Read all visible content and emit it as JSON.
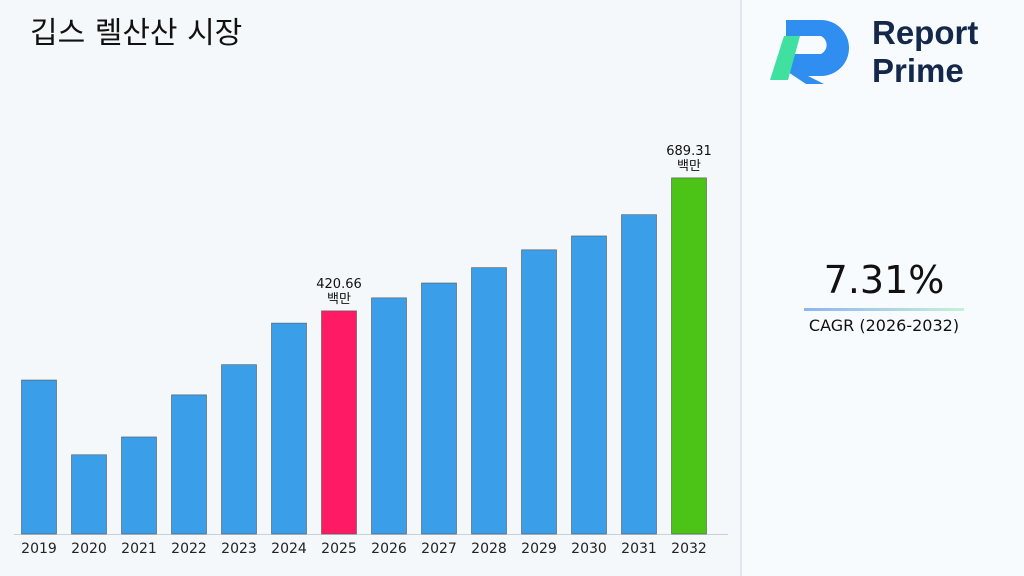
{
  "chart_data": {
    "type": "bar",
    "title": "깁스 렐산산 시장",
    "categories": [
      "2019",
      "2020",
      "2021",
      "2022",
      "2023",
      "2024",
      "2025",
      "2026",
      "2027",
      "2028",
      "2029",
      "2030",
      "2031",
      "2032"
    ],
    "values": [
      281,
      130,
      166,
      251,
      312,
      396,
      420.66,
      447,
      477,
      508,
      544,
      572,
      615,
      689.31
    ],
    "value_labels": [
      null,
      null,
      null,
      null,
      null,
      null,
      "420.66 백만",
      null,
      null,
      null,
      null,
      null,
      null,
      "689.31 백만"
    ],
    "colors": [
      "#3a9fe8",
      "#3a9fe8",
      "#3a9fe8",
      "#3a9fe8",
      "#3a9fe8",
      "#3a9fe8",
      "#ff1a66",
      "#3a9fe8",
      "#3a9fe8",
      "#3a9fe8",
      "#3a9fe8",
      "#3a9fe8",
      "#3a9fe8",
      "#4cc417"
    ],
    "ylim": [
      -30,
      720
    ]
  },
  "sidebar": {
    "logo": [
      "Report",
      "Prime"
    ],
    "cagr": "7.31%",
    "cagr_label": "CAGR (2026-2032)"
  }
}
